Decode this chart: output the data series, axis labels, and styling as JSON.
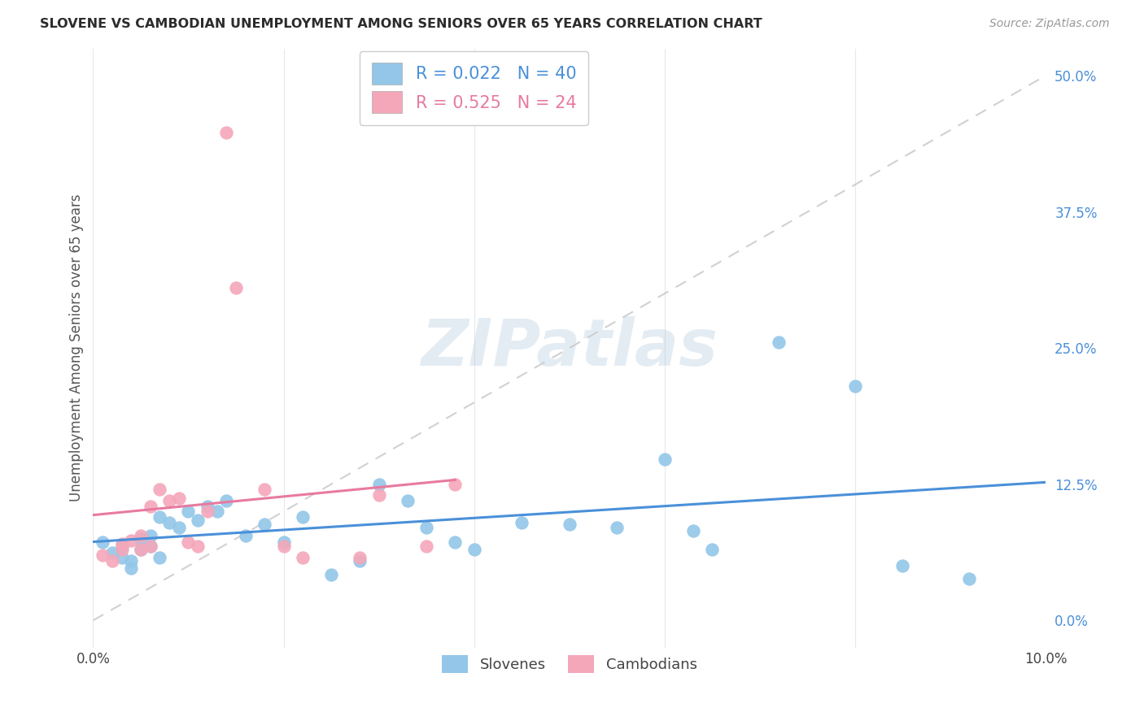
{
  "title": "SLOVENE VS CAMBODIAN UNEMPLOYMENT AMONG SENIORS OVER 65 YEARS CORRELATION CHART",
  "source": "Source: ZipAtlas.com",
  "ylabel": "Unemployment Among Seniors over 65 years",
  "slovene_R": 0.022,
  "slovene_N": 40,
  "cambodian_R": 0.525,
  "cambodian_N": 24,
  "slovene_color": "#93C6E8",
  "cambodian_color": "#F4A7B9",
  "slovene_line_color": "#4A90D9",
  "cambodian_line_color": "#E87A9F",
  "diagonal_color": "#CCCCCC",
  "grid_color": "#E8E8E8",
  "bg_color": "#FFFFFF",
  "title_color": "#2C2C2C",
  "xlim": [
    0.0,
    0.1
  ],
  "ylim": [
    -0.025,
    0.525
  ],
  "yticks": [
    0.0,
    0.125,
    0.25,
    0.375,
    0.5
  ],
  "ytick_labels": [
    "0.0%",
    "12.5%",
    "25.0%",
    "37.5%",
    "50.0%"
  ],
  "xtick_vals": [
    0.0,
    0.1
  ],
  "xtick_labels": [
    "0.0%",
    "10.0%"
  ],
  "slovene_x": [
    0.001,
    0.002,
    0.003,
    0.003,
    0.004,
    0.004,
    0.005,
    0.005,
    0.006,
    0.006,
    0.007,
    0.007,
    0.008,
    0.009,
    0.01,
    0.011,
    0.012,
    0.013,
    0.014,
    0.016,
    0.018,
    0.02,
    0.022,
    0.025,
    0.028,
    0.03,
    0.033,
    0.035,
    0.038,
    0.04,
    0.045,
    0.05,
    0.055,
    0.06,
    0.063,
    0.065,
    0.072,
    0.08,
    0.085,
    0.092
  ],
  "slovene_y": [
    0.072,
    0.062,
    0.058,
    0.068,
    0.055,
    0.048,
    0.075,
    0.065,
    0.078,
    0.068,
    0.095,
    0.058,
    0.09,
    0.085,
    0.1,
    0.092,
    0.105,
    0.1,
    0.11,
    0.078,
    0.088,
    0.072,
    0.095,
    0.042,
    0.055,
    0.125,
    0.11,
    0.085,
    0.072,
    0.065,
    0.09,
    0.088,
    0.085,
    0.148,
    0.082,
    0.065,
    0.255,
    0.215,
    0.05,
    0.038
  ],
  "cambodian_x": [
    0.001,
    0.002,
    0.003,
    0.003,
    0.004,
    0.005,
    0.005,
    0.006,
    0.006,
    0.007,
    0.008,
    0.009,
    0.01,
    0.011,
    0.012,
    0.014,
    0.015,
    0.018,
    0.02,
    0.022,
    0.028,
    0.03,
    0.035,
    0.038
  ],
  "cambodian_y": [
    0.06,
    0.055,
    0.065,
    0.07,
    0.073,
    0.078,
    0.065,
    0.068,
    0.105,
    0.12,
    0.11,
    0.112,
    0.072,
    0.068,
    0.1,
    0.448,
    0.305,
    0.12,
    0.068,
    0.058,
    0.058,
    0.115,
    0.068,
    0.125
  ]
}
